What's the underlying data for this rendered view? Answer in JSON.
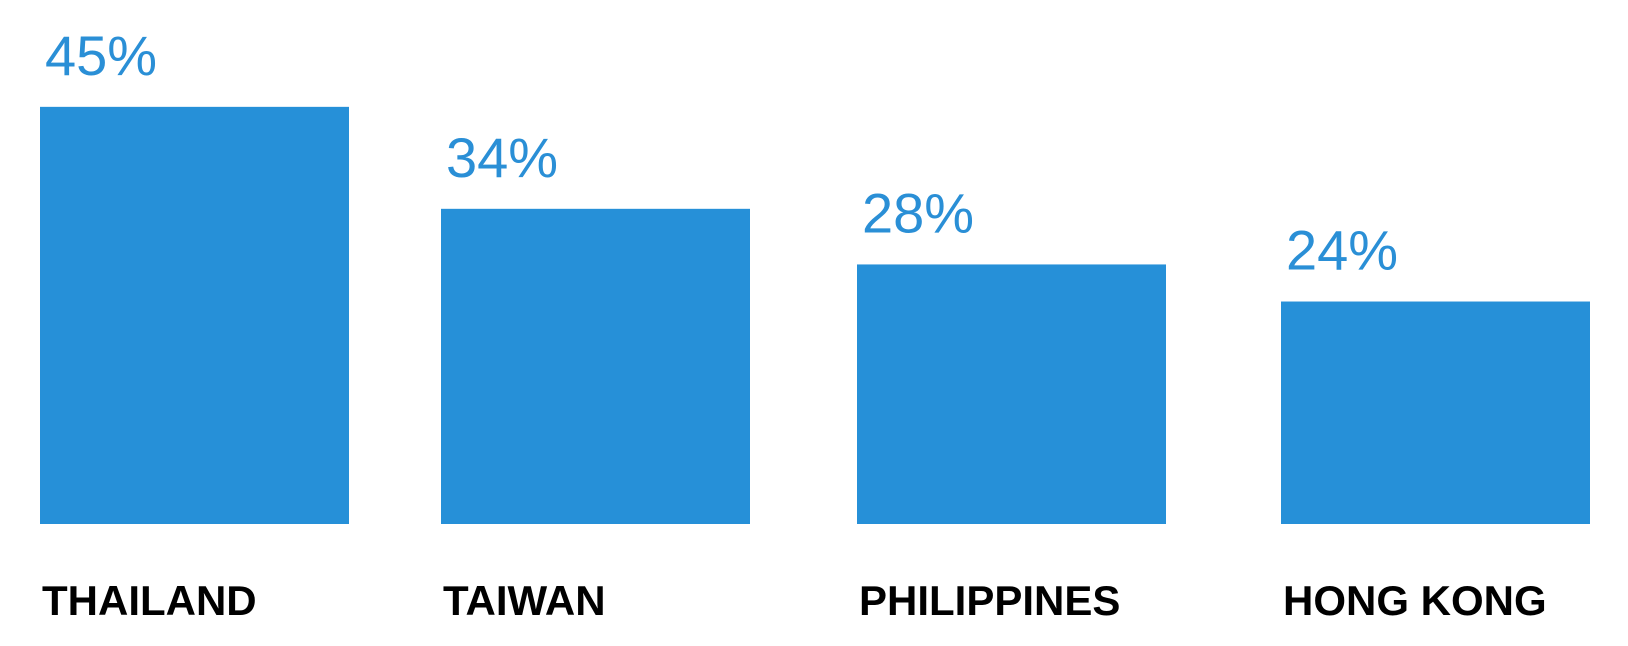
{
  "chart_data": {
    "type": "bar",
    "categories": [
      "THAILAND",
      "TAIWAN",
      "PHILIPPINES",
      "HONG KONG"
    ],
    "values": [
      45,
      34,
      28,
      24
    ],
    "value_labels": [
      "45%",
      "34%",
      "28%",
      "24%"
    ],
    "color": "#2690d8"
  }
}
